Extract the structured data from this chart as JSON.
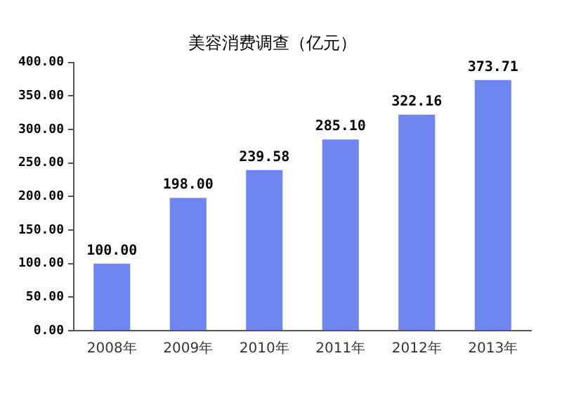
{
  "chart_data": {
    "type": "bar",
    "title": "美容消费调查（亿元）",
    "categories": [
      "2008年",
      "2009年",
      "2010年",
      "2011年",
      "2012年",
      "2013年"
    ],
    "values": [
      100.0,
      198.0,
      239.58,
      285.1,
      322.16,
      373.71
    ],
    "value_labels": [
      "100.00",
      "198.00",
      "239.58",
      "285.10",
      "322.16",
      "373.71"
    ],
    "color": "#6f86f0",
    "ylim": [
      0,
      400
    ],
    "yticks": [
      {
        "value": 0,
        "label": "0.00"
      },
      {
        "value": 50,
        "label": "50.00"
      },
      {
        "value": 100,
        "label": "100.00"
      },
      {
        "value": 150,
        "label": "150.00"
      },
      {
        "value": 200,
        "label": "200.00"
      },
      {
        "value": 250,
        "label": "250.00"
      },
      {
        "value": 300,
        "label": "300.00"
      },
      {
        "value": 350,
        "label": "350.00"
      },
      {
        "value": 400,
        "label": "400.00"
      }
    ],
    "grid": false,
    "legend": false
  }
}
